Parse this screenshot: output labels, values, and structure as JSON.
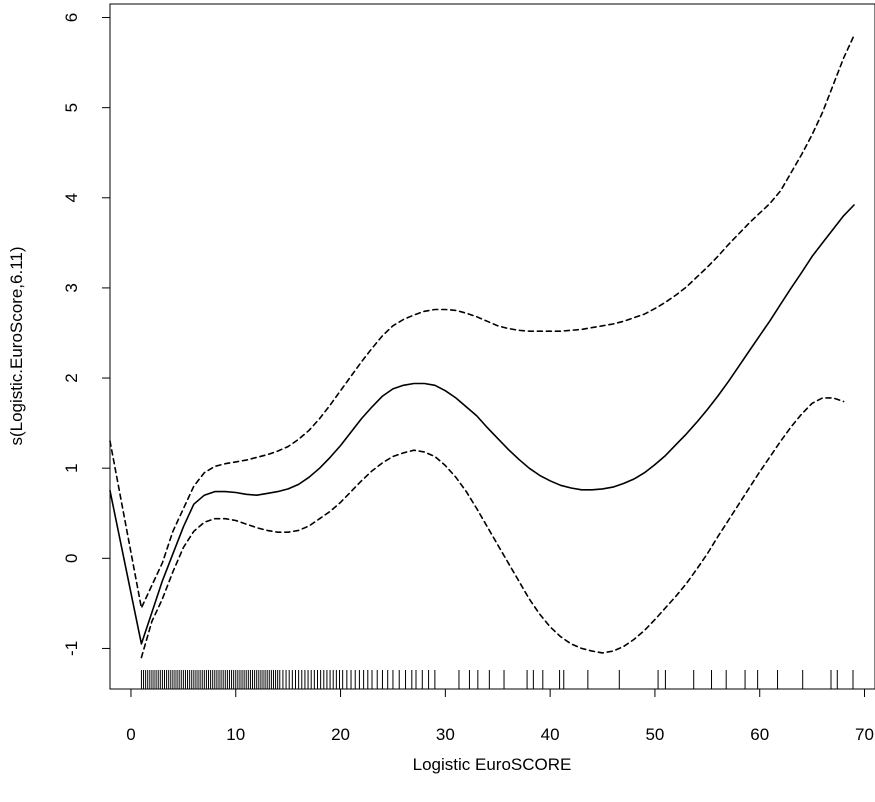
{
  "chart_data": {
    "type": "line",
    "title": "",
    "xlabel": "Logistic EuroSCORE",
    "ylabel": "s(Logistic.EuroScore,6.11)",
    "xlim": [
      -2,
      71
    ],
    "ylim": [
      -1.45,
      6.15
    ],
    "x_ticks": [
      0,
      10,
      20,
      30,
      40,
      50,
      60,
      70
    ],
    "y_ticks": [
      -1,
      0,
      1,
      2,
      3,
      4,
      5,
      6
    ],
    "grid": false,
    "legend": "none",
    "series": [
      {
        "role": "estimate",
        "dash": "solid",
        "x": [
          -2,
          1,
          2,
          3,
          4,
          5,
          6,
          7,
          8,
          9,
          10,
          11,
          12,
          13,
          14,
          15,
          16,
          17,
          18,
          19,
          20,
          21,
          22,
          23,
          24,
          25,
          26,
          27,
          28,
          29,
          30,
          31,
          32,
          33,
          34,
          35,
          36,
          37,
          38,
          39,
          40,
          41,
          42,
          43,
          44,
          45,
          46,
          47,
          48,
          49,
          50,
          51,
          52,
          53,
          54,
          55,
          56,
          57,
          58,
          59,
          60,
          61,
          62,
          63,
          64,
          65,
          66,
          67,
          68,
          69
        ],
        "y": [
          0.75,
          -0.95,
          -0.6,
          -0.25,
          0.05,
          0.35,
          0.6,
          0.7,
          0.74,
          0.74,
          0.73,
          0.71,
          0.7,
          0.72,
          0.74,
          0.77,
          0.82,
          0.9,
          1.0,
          1.12,
          1.25,
          1.4,
          1.55,
          1.68,
          1.8,
          1.88,
          1.92,
          1.94,
          1.94,
          1.92,
          1.86,
          1.78,
          1.68,
          1.58,
          1.45,
          1.33,
          1.21,
          1.1,
          1.0,
          0.92,
          0.86,
          0.81,
          0.78,
          0.76,
          0.76,
          0.77,
          0.79,
          0.83,
          0.88,
          0.95,
          1.04,
          1.14,
          1.26,
          1.38,
          1.51,
          1.65,
          1.8,
          1.96,
          2.13,
          2.3,
          2.47,
          2.64,
          2.82,
          3.0,
          3.17,
          3.35,
          3.5,
          3.65,
          3.8,
          3.92
        ]
      },
      {
        "role": "upper-band",
        "dash": "dashed",
        "x": [
          -2,
          1,
          2,
          3,
          4,
          5,
          6,
          7,
          8,
          9,
          10,
          11,
          12,
          13,
          14,
          15,
          16,
          17,
          18,
          19,
          20,
          21,
          22,
          23,
          24,
          25,
          26,
          27,
          28,
          29,
          30,
          31,
          32,
          33,
          34,
          35,
          36,
          37,
          38,
          39,
          40,
          41,
          42,
          43,
          44,
          45,
          46,
          47,
          48,
          49,
          50,
          51,
          52,
          53,
          54,
          55,
          56,
          57,
          58,
          59,
          60,
          61,
          62,
          63,
          64,
          65,
          66,
          67,
          68,
          69
        ],
        "y": [
          1.3,
          -0.55,
          -0.3,
          -0.05,
          0.3,
          0.55,
          0.8,
          0.95,
          1.02,
          1.05,
          1.07,
          1.09,
          1.12,
          1.15,
          1.19,
          1.24,
          1.32,
          1.42,
          1.55,
          1.7,
          1.86,
          2.02,
          2.18,
          2.33,
          2.47,
          2.58,
          2.65,
          2.7,
          2.74,
          2.76,
          2.76,
          2.75,
          2.72,
          2.68,
          2.63,
          2.58,
          2.55,
          2.53,
          2.52,
          2.52,
          2.52,
          2.52,
          2.53,
          2.54,
          2.56,
          2.58,
          2.6,
          2.63,
          2.67,
          2.71,
          2.77,
          2.84,
          2.92,
          3.01,
          3.12,
          3.23,
          3.35,
          3.48,
          3.6,
          3.72,
          3.83,
          3.94,
          4.08,
          4.28,
          4.48,
          4.7,
          4.95,
          5.25,
          5.55,
          5.8
        ]
      },
      {
        "role": "lower-band",
        "dash": "dashed",
        "x": [
          1,
          2,
          3,
          4,
          5,
          6,
          7,
          8,
          9,
          10,
          11,
          12,
          13,
          14,
          15,
          16,
          17,
          18,
          19,
          20,
          21,
          22,
          23,
          24,
          25,
          26,
          27,
          28,
          29,
          30,
          31,
          32,
          33,
          34,
          35,
          36,
          37,
          38,
          39,
          40,
          41,
          42,
          43,
          44,
          45,
          46,
          47,
          48,
          49,
          50,
          51,
          52,
          53,
          54,
          55,
          56,
          57,
          58,
          59,
          60,
          61,
          62,
          63,
          64,
          65,
          66,
          67,
          68
        ],
        "y": [
          -1.1,
          -0.7,
          -0.45,
          -0.15,
          0.12,
          0.3,
          0.4,
          0.44,
          0.44,
          0.42,
          0.38,
          0.34,
          0.31,
          0.29,
          0.29,
          0.31,
          0.36,
          0.44,
          0.52,
          0.62,
          0.74,
          0.86,
          0.97,
          1.06,
          1.13,
          1.17,
          1.2,
          1.18,
          1.13,
          1.03,
          0.9,
          0.74,
          0.55,
          0.35,
          0.15,
          -0.05,
          -0.25,
          -0.45,
          -0.62,
          -0.76,
          -0.87,
          -0.95,
          -1.0,
          -1.03,
          -1.05,
          -1.03,
          -0.98,
          -0.9,
          -0.8,
          -0.68,
          -0.55,
          -0.42,
          -0.28,
          -0.12,
          0.05,
          0.24,
          0.42,
          0.6,
          0.78,
          0.96,
          1.13,
          1.3,
          1.46,
          1.6,
          1.72,
          1.78,
          1.78,
          1.74
        ]
      }
    ],
    "rug": [
      1,
      1.2,
      1.4,
      1.6,
      1.8,
      2,
      2.2,
      2.4,
      2.6,
      2.8,
      3,
      3.2,
      3.4,
      3.6,
      3.8,
      4,
      4.2,
      4.4,
      4.6,
      4.8,
      5,
      5.2,
      5.4,
      5.6,
      5.8,
      6,
      6.2,
      6.4,
      6.6,
      6.8,
      7,
      7.2,
      7.4,
      7.6,
      7.8,
      8,
      8.2,
      8.4,
      8.6,
      8.8,
      9,
      9.2,
      9.4,
      9.6,
      9.8,
      10,
      10.2,
      10.4,
      10.6,
      10.8,
      11,
      11.2,
      11.4,
      11.6,
      11.8,
      12,
      12.2,
      12.4,
      12.6,
      12.8,
      13,
      13.2,
      13.4,
      13.6,
      13.8,
      14,
      14.2,
      14.5,
      14.8,
      15.1,
      15.4,
      15.7,
      16,
      16.3,
      16.6,
      16.9,
      17.2,
      17.5,
      17.8,
      18.1,
      18.4,
      18.7,
      19,
      19.3,
      19.6,
      19.9,
      20.2,
      20.6,
      21,
      21.4,
      21.8,
      22.2,
      22.6,
      23,
      23.5,
      24,
      24.5,
      25,
      25.6,
      26.2,
      26.8,
      27.2,
      27.8,
      28.4,
      29,
      31.3,
      32.3,
      33.1,
      34.2,
      35.6,
      37.8,
      38.4,
      39.3,
      40.9,
      41.3,
      43.6,
      46.6,
      50.3,
      51,
      53.7,
      55.4,
      56.8,
      58.6,
      59.8,
      61.7,
      64.1,
      66.8,
      67.4,
      68.9
    ]
  }
}
